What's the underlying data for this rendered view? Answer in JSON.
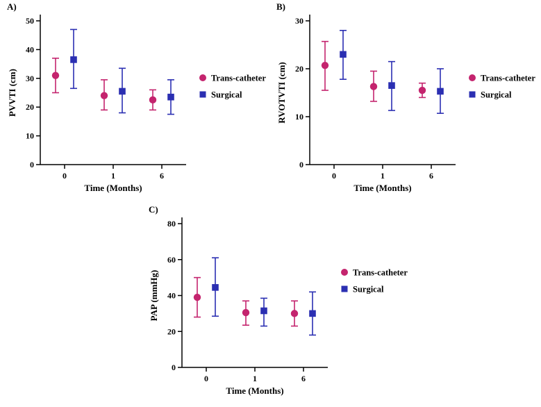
{
  "figure": {
    "background": "#ffffff",
    "axis_color": "#000000"
  },
  "colors": {
    "trans_catheter": "#C4246E",
    "surgical": "#2B2FB2"
  },
  "chart_data": [
    {
      "panel_label": "A)",
      "type": "scatter",
      "title": "",
      "xlabel": "Time (Months)",
      "ylabel": "PVVTI (cm)",
      "ylim": [
        0,
        50
      ],
      "yticks": [
        0,
        10,
        20,
        30,
        40,
        50
      ],
      "categories": [
        "0",
        "1",
        "6"
      ],
      "grid": false,
      "legend_position": "right",
      "series": [
        {
          "name": "Trans-catheter",
          "marker": "circle",
          "color": "#C4246E",
          "values": [
            31,
            24,
            22.5
          ],
          "err_low": [
            25,
            19,
            19
          ],
          "err_high": [
            37,
            29.5,
            26
          ]
        },
        {
          "name": "Surgical",
          "marker": "square",
          "color": "#2B2FB2",
          "values": [
            36.5,
            25.5,
            23.5
          ],
          "err_low": [
            26.5,
            18,
            17.5
          ],
          "err_high": [
            47,
            33.5,
            29.5
          ]
        }
      ]
    },
    {
      "panel_label": "B)",
      "type": "scatter",
      "title": "",
      "xlabel": "Time (Months)",
      "ylabel": "RVOTVTI (cm)",
      "ylim": [
        0,
        30
      ],
      "yticks": [
        0,
        10,
        20,
        30
      ],
      "categories": [
        "0",
        "1",
        "6"
      ],
      "grid": false,
      "legend_position": "right",
      "series": [
        {
          "name": "Trans-catheter",
          "marker": "circle",
          "color": "#C4246E",
          "values": [
            20.7,
            16.3,
            15.5
          ],
          "err_low": [
            15.5,
            13.2,
            14
          ],
          "err_high": [
            25.7,
            19.5,
            17
          ]
        },
        {
          "name": "Surgical",
          "marker": "square",
          "color": "#2B2FB2",
          "values": [
            23,
            16.5,
            15.3
          ],
          "err_low": [
            17.8,
            11.3,
            10.7
          ],
          "err_high": [
            28,
            21.5,
            20
          ]
        }
      ]
    },
    {
      "panel_label": "C)",
      "type": "scatter",
      "title": "",
      "xlabel": "Time (Months)",
      "ylabel": "PAP (mmHg)",
      "ylim": [
        0,
        80
      ],
      "yticks": [
        0,
        20,
        40,
        60,
        80
      ],
      "categories": [
        "0",
        "1",
        "6"
      ],
      "grid": false,
      "legend_position": "right",
      "series": [
        {
          "name": "Trans-catheter",
          "marker": "circle",
          "color": "#C4246E",
          "values": [
            39,
            30.5,
            30
          ],
          "err_low": [
            28,
            23.5,
            23
          ],
          "err_high": [
            50,
            37,
            37
          ]
        },
        {
          "name": "Surgical",
          "marker": "square",
          "color": "#2B2FB2",
          "values": [
            44.5,
            31.5,
            30
          ],
          "err_low": [
            28.5,
            23,
            18
          ],
          "err_high": [
            61,
            38.5,
            42
          ]
        }
      ]
    }
  ]
}
